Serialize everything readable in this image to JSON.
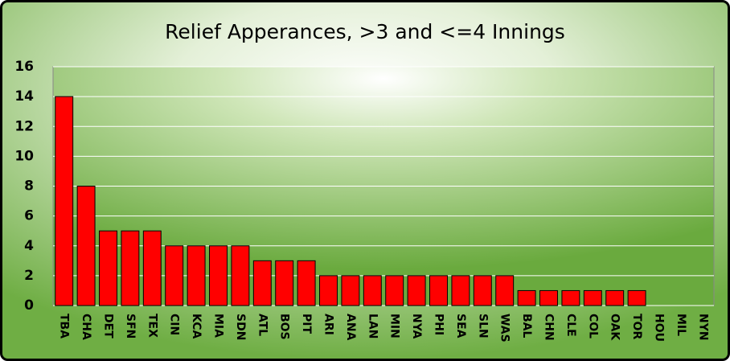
{
  "chart_data": {
    "type": "bar",
    "title": "Relief Apperances,  >3 and <=4 Innings",
    "categories": [
      "TBA",
      "CHA",
      "DET",
      "SFN",
      "TEX",
      "CIN",
      "KCA",
      "MIA",
      "SDN",
      "ATL",
      "BOS",
      "PIT",
      "ARI",
      "ANA",
      "LAN",
      "MIN",
      "NYA",
      "PHI",
      "SEA",
      "SLN",
      "WAS",
      "BAL",
      "CHN",
      "CLE",
      "COL",
      "OAK",
      "TOR",
      "HOU",
      "MIL",
      "NYN"
    ],
    "values": [
      14,
      8,
      5,
      5,
      5,
      4,
      4,
      4,
      4,
      3,
      3,
      3,
      2,
      2,
      2,
      2,
      2,
      2,
      2,
      2,
      2,
      1,
      1,
      1,
      1,
      1,
      1,
      0,
      0,
      0
    ],
    "color": "#ff0000",
    "ylim": [
      0,
      16
    ],
    "yticks": [
      0,
      2,
      4,
      6,
      8,
      10,
      12,
      14,
      16
    ],
    "grid": true
  }
}
